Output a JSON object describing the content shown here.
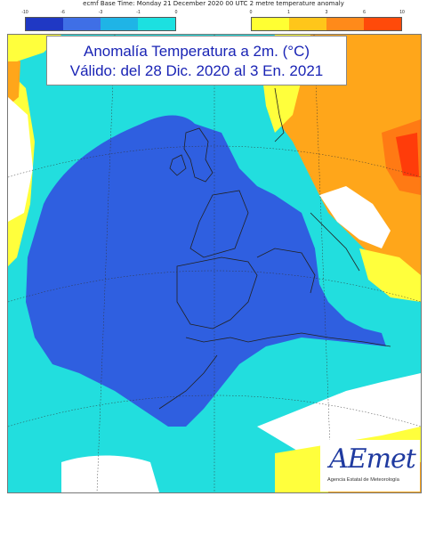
{
  "header": {
    "text": "ecmf  Base Time: Monday 21 December 2020 00 UTC 2 metre temperature anomaly"
  },
  "legend_cold": {
    "ticks": [
      "-10",
      "-6",
      "-3",
      "-1",
      "0"
    ],
    "colors": [
      "#1f38c4",
      "#3f6fe6",
      "#1fb4e6",
      "#1ce0e0"
    ]
  },
  "legend_warm": {
    "ticks": [
      "0",
      "1",
      "3",
      "6",
      "10"
    ],
    "colors": [
      "#ffff33",
      "#ffc61a",
      "#ff8a1a",
      "#ff4a0a"
    ]
  },
  "title": {
    "line1": "Anomalía Temperatura a 2m. (°C)",
    "line2": "Válido: del 28 Dic. 2020 al 3 En. 2021"
  },
  "logo": {
    "mark": "AEmet",
    "subtitle": "Agencia Estatal de Meteorología"
  },
  "colors": {
    "deep_blue": "#2f5fe0",
    "cyan": "#22dede",
    "yellow": "#ffff3c",
    "orange": "#ffa61a",
    "dark_orange": "#ff7a14",
    "red": "#ff3c0a",
    "white": "#ffffff",
    "coast": "#222222"
  }
}
